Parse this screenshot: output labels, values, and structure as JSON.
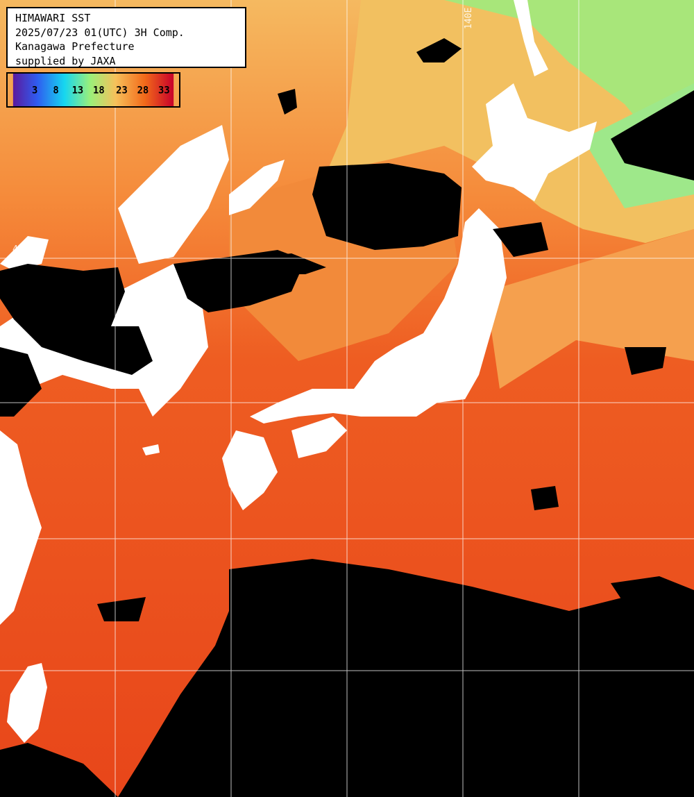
{
  "title": {
    "line1": "HIMAWARI SST",
    "line2": "2025/07/23 01(UTC) 3H Comp.",
    "line3": "Kanagawa Prefecture",
    "line4": "supplied by JAXA"
  },
  "colorbar": {
    "ticks": [
      "3",
      "8",
      "13",
      "18",
      "23",
      "28",
      "33"
    ],
    "colors": [
      "#5b1a9e",
      "#2f5cf0",
      "#16d6f0",
      "#9af07a",
      "#f7c05a",
      "#f26a1a",
      "#c8002a"
    ]
  },
  "grid_labels": {
    "lat": "40N",
    "lon": "140E"
  },
  "colors": {
    "ocean_warm": "#ec4a18",
    "ocean_mid": "#f58a3a",
    "ocean_cool": "#f7c868",
    "ocean_cold": "#8ee680",
    "cloud": "#000000",
    "land": "#ffffff"
  }
}
